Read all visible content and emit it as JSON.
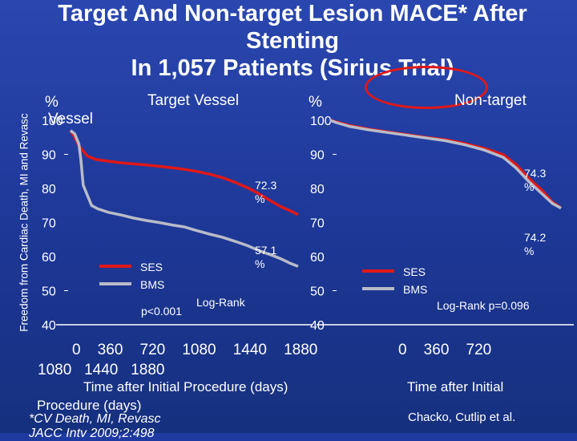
{
  "slide": {
    "title_line1": "Target And Non-target Lesion MACE* After",
    "title_line2": "Stenting",
    "title_line3": "In 1,057 Patients (Sirius Trial)",
    "y_axis_title": "Freedom from Cardiac Death, MI and Revasc",
    "footnote": "*CV Death, MI, Revasc",
    "citation": "Chacko, Cutlip et al.",
    "reference_partial": "JACC Intv 2009;2:498",
    "colors": {
      "background": "#1f3aa0",
      "ses": "#e01818",
      "bms": "#b8bcc8",
      "text": "#ffffff"
    }
  },
  "chart_data": [
    {
      "type": "line",
      "title": "Target Vessel",
      "ylabel": "%",
      "ylabel_extra": "Vessel",
      "xlabel": "Time after Initial Procedure (days)",
      "xtick_line1": "0    360    720    1080    1440    1880",
      "xtick_line2": "1080   1440   1880",
      "yticks": [
        "100",
        "90",
        "80",
        "70",
        "60",
        "50",
        "40"
      ],
      "ylim": [
        40,
        100
      ],
      "xlim": [
        0,
        1080
      ],
      "series": [
        {
          "name": "SES",
          "color": "#e01818",
          "x": [
            0,
            20,
            40,
            80,
            120,
            180,
            240,
            300,
            360,
            420,
            480,
            540,
            600,
            660,
            720,
            780,
            840,
            900,
            960,
            1000,
            1040,
            1080
          ],
          "y": [
            97,
            95,
            92.5,
            89.5,
            88.5,
            88,
            87.5,
            87.2,
            86.9,
            86.5,
            86.1,
            85.6,
            85,
            84.2,
            83.2,
            81.8,
            80.2,
            78.2,
            76,
            74.6,
            73.5,
            72.3
          ]
        },
        {
          "name": "BMS",
          "color": "#b8bcc8",
          "x": [
            0,
            20,
            40,
            50,
            60,
            80,
            100,
            130,
            180,
            240,
            300,
            360,
            420,
            480,
            540,
            600,
            660,
            720,
            780,
            840,
            900,
            960,
            1000,
            1040,
            1080
          ],
          "y": [
            97,
            96,
            93,
            88,
            81,
            78,
            75,
            74,
            73,
            72.2,
            71.3,
            70.6,
            70,
            69.3,
            68.7,
            67.6,
            66.6,
            65.7,
            64.5,
            63.2,
            61.6,
            60.3,
            59.3,
            58.1,
            57.1
          ]
        }
      ],
      "annotations": [
        "72.3 %",
        "57.1 %"
      ],
      "legend": [
        "SES",
        "BMS"
      ],
      "pvalue": "p<0.001",
      "test": "Log-Rank"
    },
    {
      "type": "line",
      "title": "Non-target",
      "ylabel": "%",
      "xlabel": "Time after Initial",
      "xtick_line1": "0    360    720",
      "yticks": [
        "100",
        "90",
        "80",
        "70",
        "60",
        "50",
        "40"
      ],
      "ylim": [
        40,
        100
      ],
      "xlim": [
        0,
        1080
      ],
      "series": [
        {
          "name": "SES",
          "color": "#e01818",
          "x": [
            0,
            30,
            90,
            180,
            270,
            360,
            450,
            540,
            630,
            720,
            810,
            870,
            930,
            990,
            1040,
            1080
          ],
          "y": [
            100,
            99.5,
            98.5,
            97.4,
            96.6,
            95.8,
            95,
            94.3,
            93.2,
            91.8,
            89.9,
            87,
            83,
            79.5,
            76,
            74.3
          ]
        },
        {
          "name": "BMS",
          "color": "#b8bcc8",
          "x": [
            0,
            30,
            90,
            180,
            270,
            360,
            450,
            540,
            630,
            720,
            810,
            870,
            930,
            990,
            1040,
            1080
          ],
          "y": [
            100,
            99.3,
            98.2,
            97.2,
            96.4,
            95.6,
            94.8,
            94,
            92.8,
            91.3,
            89.1,
            86,
            82,
            78.5,
            75.6,
            74.2
          ]
        }
      ],
      "annotations": [
        "74.3 %",
        "74.2 %"
      ],
      "legend": [
        "SES",
        "BMS"
      ],
      "test": "Log-Rank p=0.096"
    }
  ]
}
